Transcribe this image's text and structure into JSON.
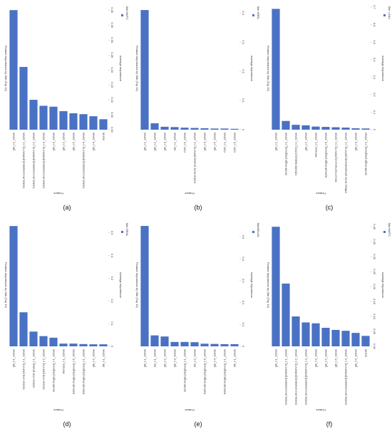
{
  "chart_data": [
    {
      "type": "bar",
      "title": "Feature Importance by Site (Top 10)",
      "xlabel": "Feature",
      "ylabel": "Average Importance",
      "legend_title": "Site",
      "caption": "(a)",
      "categories": [
        "ghi_t-1_10min",
        "Global (Accumulated) [kWh/m^2]_t-1_10min",
        "Global (Accumulated) [kWh/m^2]_t-2_10min",
        "Global (Accumulated) [kWh/m^2]_t-3_10min",
        "ghi_t-3_10min",
        "ghi_t-2_10min",
        "ghi_t-5_10min",
        "Global (Accumulated) [kWh/m^2]_t-4_10min",
        "ghi_t-4_10min",
        "month"
      ],
      "series": [
        {
          "name": "NWTC",
          "color": "#4a72c4",
          "values": [
            0.4,
            0.21,
            0.1,
            0.08,
            0.077,
            0.062,
            0.055,
            0.052,
            0.045,
            0.035
          ]
        }
      ],
      "ylim": [
        0,
        0.41
      ],
      "yticks": [
        {
          "value": 0,
          "label": "0.00"
        },
        0.05,
        {
          "value": 0.1,
          "label": "0.10"
        },
        0.15,
        {
          "value": 0.2,
          "label": "0.20"
        },
        0.25,
        {
          "value": 0.3,
          "label": "0.30"
        },
        0.35,
        {
          "value": 0.4,
          "label": "0.40"
        }
      ]
    },
    {
      "type": "bar",
      "title": "Feature Importance by Site (Top 10)",
      "xlabel": "Feature",
      "ylabel": "Average Importance",
      "legend_title": "Site",
      "caption": "(b)",
      "categories": [
        "ghi_t-1_10min",
        "ghi_t-2_10min",
        "ghi_t-3_10min",
        "dni_t-1_10min",
        "CSF_t-6_10min",
        "Global Horiz (Index) [W/m^2]_t-1_10min",
        "ghi_t-4_10min",
        "ghi_t-5_10min",
        "CSF_t-1_10min",
        "CSF_t-5_10min"
      ],
      "series": [
        {
          "name": "SRRL",
          "color": "#4a72c4",
          "values": [
            0.41,
            0.022,
            0.01,
            0.009,
            0.007,
            0.006,
            0.005,
            0.004,
            0.004,
            0.003
          ]
        }
      ],
      "ylim": [
        0,
        0.42
      ],
      "yticks": [
        0,
        0.1,
        0.2,
        0.3,
        0.4
      ]
    },
    {
      "type": "bar",
      "title": "Feature Importance by Site (Top 10)",
      "xlabel": "Feature",
      "ylabel": "Average Importance",
      "legend_title": "Site",
      "caption": "(c)",
      "categories": [
        "ghi_t-1_10min",
        "Zenith Angle [degrees]_t-1_10min",
        "CR1000 Battery [VDC]_t-1_10min",
        "ghi_t-2_10min",
        "Airmass_t-1_10min",
        "Azimuth Angle [degrees]_t-6_10min",
        "Direct Normal (cor) [W/m^2]_t-1_10min",
        "Diffuse Horiz (shadowband) [W/m^2]_t-1_10min",
        "ghi_t-3_10min",
        "Zenith Angle [degrees]_t-2_10min"
      ],
      "series": [
        {
          "name": "UNLV",
          "color": "#4a72c4",
          "values": [
            0.69,
            0.05,
            0.028,
            0.025,
            0.018,
            0.016,
            0.014,
            0.012,
            0.008,
            0.007
          ]
        }
      ],
      "ylim": [
        0,
        0.7
      ],
      "yticks": [
        0,
        0.1,
        0.2,
        0.3,
        0.4,
        0.5,
        0.6,
        0.7
      ]
    },
    {
      "type": "bar",
      "title": "Feature Importance by Site (Top 10)",
      "xlabel": "Feature",
      "ylabel": "Average Importance",
      "legend_title": "Site",
      "caption": "(d)",
      "categories": [
        "ghi_t-1_10min",
        "Global UVE [W/m^2]_t-1_10min",
        "Global UVE [Index]_t-1_10min",
        "Global UVE [W/m^2]_t-2_10min",
        "Zenith Angle [degrees]_t-1_10min",
        "Airmass_t-1_10min",
        "Azimuth Angle [degrees]_t-6_10min",
        "Azimuth Angle [degrees]_t-1_10min",
        "ghi_t-2_10min",
        "dhi_t-1_10min"
      ],
      "series": [
        {
          "name": "ORNL",
          "color": "#4a72c4",
          "values": [
            0.53,
            0.15,
            0.065,
            0.045,
            0.038,
            0.012,
            0.012,
            0.01,
            0.009,
            0.009
          ]
        }
      ],
      "ylim": [
        0,
        0.54
      ],
      "yticks": [
        0,
        0.1,
        0.2,
        0.3,
        0.4,
        0.5
      ]
    },
    {
      "type": "bar",
      "title": "Feature Importance by Site (Top 10)",
      "xlabel": "Feature",
      "ylabel": "Average Importance",
      "legend_title": "Site",
      "caption": "(e)",
      "categories": [
        "ghi_t-1_10min",
        "dni_t-1_10min",
        "ghi_t-2_10min",
        "ghi_t-3_10min",
        "Zenith Angle [degrees]_t-1_10min",
        "dni_t-2_10min",
        "Azimuth Angle [degrees]_t-6_10min",
        "ghi_t-4_10min",
        "Azimuth Angle [degrees]_t-1_10min",
        "dhi_t-1_10min"
      ],
      "series": [
        {
          "name": "NELHA",
          "color": "#4a72c4",
          "values": [
            0.55,
            0.05,
            0.045,
            0.02,
            0.02,
            0.019,
            0.012,
            0.011,
            0.01,
            0.01
          ]
        }
      ],
      "ylim": [
        0,
        0.56
      ],
      "yticks": [
        0,
        0.1,
        0.2,
        0.3,
        0.4,
        0.5
      ]
    },
    {
      "type": "bar",
      "title": "Feature Importance by Site (Top 10)",
      "xlabel": "Feature",
      "ylabel": "Average Importance",
      "legend_title": "Site",
      "caption": "(f)",
      "categories": [
        "ghi_t-1_10min",
        "Global (Accumulated) [kWh/m^2]_t-1_10min",
        "Global (Accumulated) [kWh/m^2]_t-2_10min",
        "Global (Accumulated) [kWh/m^2]_t-3_10min",
        "ghi_t-3_10min",
        "ghi_t-2_10min",
        "ghi_t-5_10min",
        "Global (Accumulated) [kWh/m^2]_t-4_10min",
        "ghi_t-4_10min",
        "month"
      ],
      "series": [
        {
          "name": "NWTC",
          "color": "#4a72c4",
          "values": [
            0.4,
            0.21,
            0.1,
            0.08,
            0.077,
            0.062,
            0.055,
            0.052,
            0.045,
            0.035
          ]
        }
      ],
      "ylim": [
        0,
        0.41
      ],
      "yticks": [
        {
          "value": 0,
          "label": "0.00"
        },
        0.05,
        {
          "value": 0.1,
          "label": "0.10"
        },
        0.15,
        {
          "value": 0.2,
          "label": "0.20"
        },
        0.25,
        {
          "value": 0.3,
          "label": "0.30"
        },
        0.35,
        {
          "value": 0.4,
          "label": "0.40"
        }
      ]
    }
  ]
}
